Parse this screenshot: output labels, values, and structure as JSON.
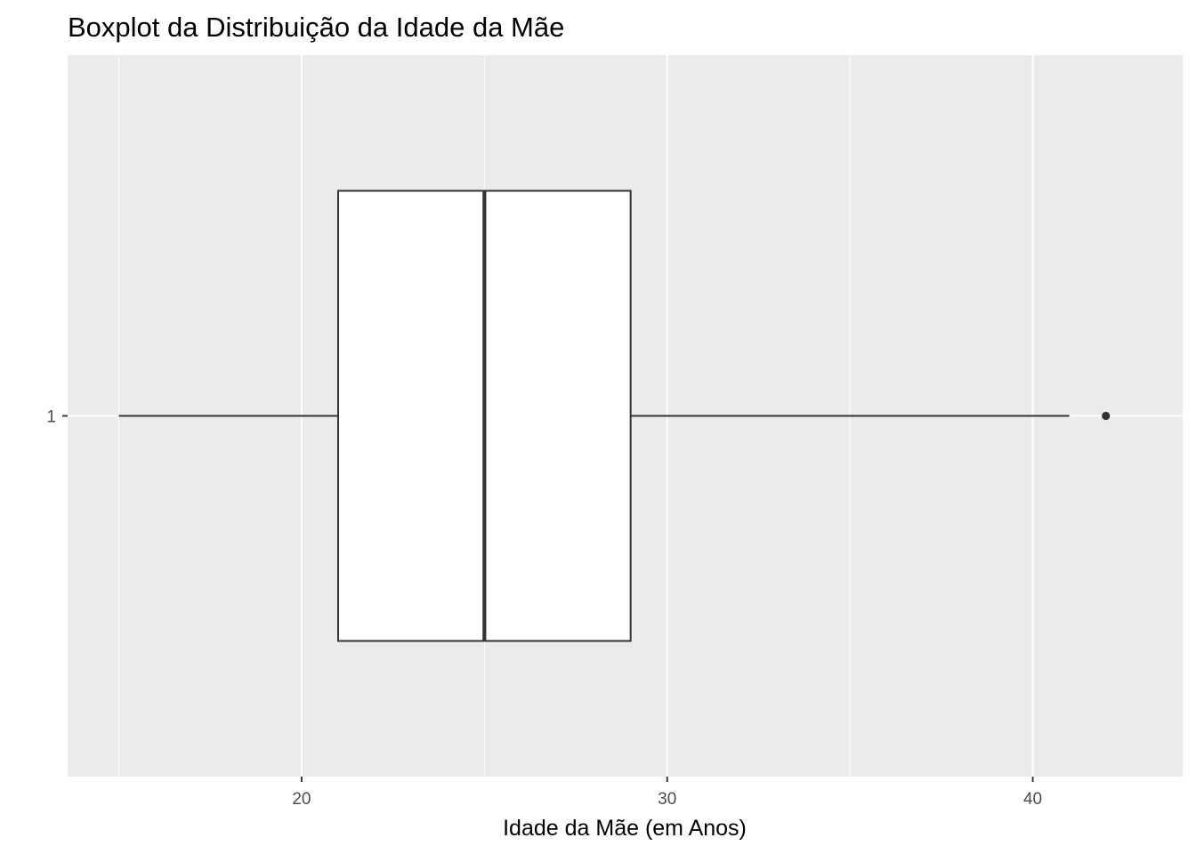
{
  "chart_data": {
    "type": "boxplot",
    "title": "Boxplot da Distribuição da Idade da Mãe",
    "xlabel": "Idade da Mãe (em Anos)",
    "ylabel": "",
    "orientation": "horizontal",
    "xlim": [
      13.6,
      44.1
    ],
    "x_ticks": [
      20,
      30,
      40
    ],
    "x_minor_ticks": [
      15,
      25,
      35
    ],
    "categories": [
      "1"
    ],
    "boxes": [
      {
        "category": "1",
        "whisker_low": 15,
        "q1": 21,
        "median": 25,
        "q3": 29,
        "whisker_high": 41,
        "outliers": [
          42
        ]
      }
    ],
    "grid": true,
    "legend": "none",
    "colors": {
      "panel_background": "#ebebeb",
      "grid_line": "#ffffff",
      "box_fill": "#ffffff",
      "box_stroke": "#333333",
      "tick_label": "#4d4d4d",
      "text": "#000000"
    }
  }
}
